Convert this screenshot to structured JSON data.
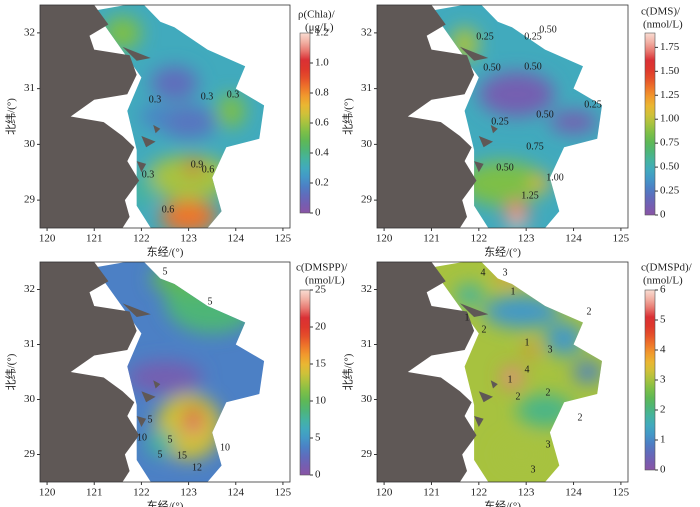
{
  "chart_data": [
    {
      "type": "map",
      "xlabel": "东经/(°)",
      "ylabel": "北纬/(°)",
      "xlim": [
        119.85,
        125.15
      ],
      "xticks": [
        120,
        121,
        122,
        123,
        124,
        125
      ],
      "ylim": [
        28.5,
        32.5
      ],
      "yticks": [
        29,
        30,
        31,
        32
      ],
      "colorbar": {
        "title": [
          "ρ(Chla)/",
          "(μg/L)"
        ],
        "lim": [
          0,
          1.2
        ],
        "ticks": [
          0,
          0.2,
          0.4,
          0.6,
          0.8,
          {
            "value": 1,
            "label": "1.0"
          },
          1.2
        ]
      },
      "contour_labels": [
        0.3,
        0.3,
        0.3,
        0.9,
        0.6,
        0.3,
        0.6
      ]
    },
    {
      "type": "map",
      "xlabel": "东经/(°)",
      "ylabel": "北纬/(°)",
      "xlim": [
        119.85,
        125.15
      ],
      "xticks": [
        120,
        121,
        122,
        123,
        124,
        125
      ],
      "ylim": [
        28.5,
        32.5
      ],
      "yticks": [
        29,
        30,
        31,
        32
      ],
      "colorbar": {
        "title": [
          "c(DMS)/",
          "(nmol/L)"
        ],
        "lim": [
          0,
          1.9
        ],
        "ticks": [
          0,
          0.25,
          {
            "value": 0.5,
            "label": "0.50"
          },
          0.75,
          {
            "value": 1,
            "label": "1.00"
          },
          1.25,
          {
            "value": 1.5,
            "label": "1.50"
          },
          1.75
        ]
      },
      "contour_labels": [
        0.25,
        0.25,
        {
          "value": 0.5,
          "label": "0.50"
        },
        {
          "value": 0.5,
          "label": "0.50"
        },
        {
          "value": 0.5,
          "label": "0.50"
        },
        0.25,
        {
          "value": 0.5,
          "label": "0.50"
        },
        0.25,
        0.75,
        {
          "value": 0.5,
          "label": "0.50"
        },
        {
          "value": 1,
          "label": "1.00"
        },
        1.25
      ]
    },
    {
      "type": "map",
      "xlabel": "东经/(°)",
      "ylabel": "北纬/(°)",
      "xlim": [
        119.85,
        125.15
      ],
      "xticks": [
        120,
        121,
        122,
        123,
        124,
        125
      ],
      "ylim": [
        28.5,
        32.5
      ],
      "yticks": [
        29,
        30,
        31,
        32
      ],
      "colorbar": {
        "title": [
          "c(DMSPP)/",
          "(nmol/L)"
        ],
        "lim": [
          0,
          25
        ],
        "ticks": [
          0,
          5,
          10,
          15,
          20,
          25
        ]
      },
      "contour_labels": [
        5,
        5,
        5,
        10,
        5,
        5,
        15,
        12,
        10
      ]
    },
    {
      "type": "map",
      "xlabel": "东经/(°)",
      "ylabel": "北纬/(°)",
      "xlim": [
        119.85,
        125.15
      ],
      "xticks": [
        120,
        121,
        122,
        123,
        124,
        125
      ],
      "ylim": [
        28.5,
        32.5
      ],
      "yticks": [
        29,
        30,
        31,
        32
      ],
      "colorbar": {
        "title": [
          "c(DMSPd)/",
          "(nmol/L)"
        ],
        "lim": [
          0,
          6
        ],
        "ticks": [
          0,
          1,
          2,
          3,
          4,
          5,
          6
        ]
      },
      "contour_labels": [
        4,
        3,
        1,
        2,
        1,
        2,
        1,
        3,
        4,
        1,
        2,
        2,
        2,
        3,
        3
      ]
    }
  ]
}
